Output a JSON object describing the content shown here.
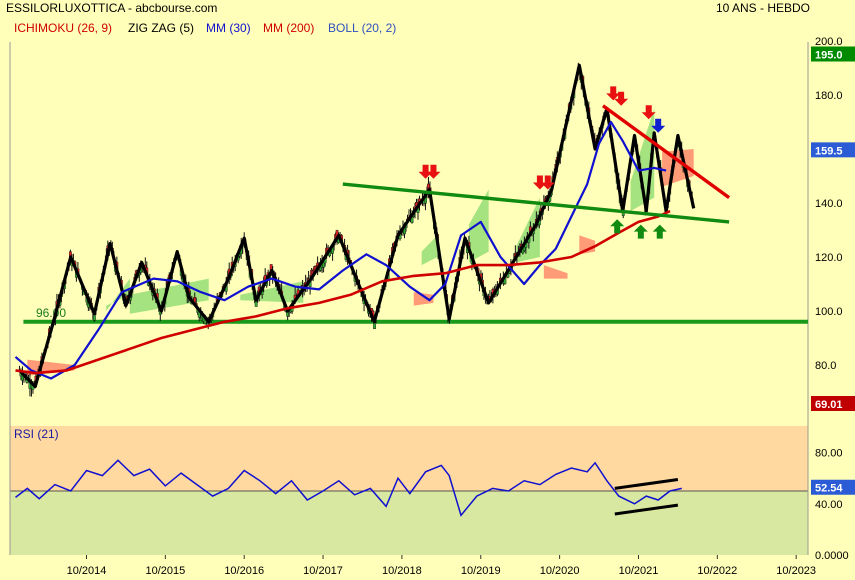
{
  "header": {
    "title": "ESSILORLUXOTTICA - abcbourse.com",
    "period": "10 ANS - HEBDO"
  },
  "legend": [
    {
      "label": "ICHIMOKU (26, 9)",
      "color": "#d00000"
    },
    {
      "label": "ZIG ZAG (5)",
      "color": "#000000"
    },
    {
      "label": "MM (30)",
      "color": "#1010d0"
    },
    {
      "label": "MM (200)",
      "color": "#d00000"
    },
    {
      "label": "BOLL (20, 2)",
      "color": "#3050c0"
    }
  ],
  "chart_data": [
    {
      "type": "line",
      "name": "price",
      "xlabel": "",
      "ylabel": "",
      "ylim": [
        55,
        201
      ],
      "ticks_y": [
        "200.0",
        "180.0",
        "160.0",
        "140.0",
        "120.0",
        "100.0",
        "80.0"
      ],
      "ticks_x": [
        "10/2014",
        "10/2015",
        "10/2016",
        "10/2017",
        "10/2018",
        "10/2019",
        "10/2020",
        "10/2021",
        "10/2022",
        "10/2023"
      ],
      "badges": [
        {
          "text": "195.0",
          "value": 195.0,
          "color": "#008a00"
        },
        {
          "text": "159.5",
          "value": 159.5,
          "color": "#2b5cd6"
        },
        {
          "text": "69.01",
          "value": 69.01,
          "color": "#c00000"
        }
      ],
      "support_label": "96.00",
      "support_level": 96.0,
      "series": [
        {
          "name": "ZIG ZAG (5)",
          "color": "#000000",
          "x": [
            2013.9,
            2014.1,
            2014.35,
            2014.55,
            2014.85,
            2015.05,
            2015.25,
            2015.45,
            2015.7,
            2015.9,
            2016.05,
            2016.3,
            2016.55,
            2016.75,
            2016.9,
            2017.1,
            2017.3,
            2017.6,
            2017.95,
            2018.2,
            2018.4,
            2018.7,
            2019.1,
            2019.35,
            2019.55,
            2019.85,
            2020.2,
            2020.45,
            2020.65,
            2021.0,
            2021.2,
            2021.35,
            2021.55,
            2021.7,
            2021.85,
            2021.95,
            2022.1,
            2022.25,
            2022.45
          ],
          "values": [
            78,
            72,
            98,
            120,
            99,
            125,
            102,
            118,
            100,
            122,
            105,
            96,
            112,
            127,
            104,
            115,
            100,
            112,
            128,
            110,
            96,
            128,
            145,
            97,
            127,
            103,
            120,
            132,
            145,
            191,
            160,
            175,
            137,
            165,
            137,
            166,
            137,
            165,
            138
          ]
        },
        {
          "name": "MM (30)",
          "color": "#1010d0",
          "x": [
            2013.85,
            2014.05,
            2014.3,
            2014.6,
            2014.9,
            2015.2,
            2015.6,
            2015.9,
            2016.2,
            2016.5,
            2016.8,
            2017.1,
            2017.4,
            2017.7,
            2018.0,
            2018.3,
            2018.55,
            2018.85,
            2019.1,
            2019.3,
            2019.5,
            2019.75,
            2020.0,
            2020.3,
            2020.5,
            2020.7,
            2020.9,
            2021.1,
            2021.25,
            2021.4,
            2021.55,
            2021.75,
            2021.95,
            2022.1
          ],
          "values": [
            83,
            78,
            75,
            80,
            93,
            107,
            112,
            111,
            107,
            104,
            109,
            112,
            109,
            108,
            115,
            121,
            117,
            109,
            104,
            110,
            128,
            133,
            120,
            110,
            117,
            123,
            135,
            147,
            162,
            170,
            163,
            152,
            153,
            152
          ]
        },
        {
          "name": "MM (200)",
          "color": "#d00000",
          "x": [
            2013.85,
            2014.1,
            2014.5,
            2014.9,
            2015.3,
            2015.7,
            2016.1,
            2016.5,
            2016.9,
            2017.3,
            2017.7,
            2018.1,
            2018.5,
            2018.9,
            2019.3,
            2019.7,
            2020.1,
            2020.5,
            2020.9,
            2021.2,
            2021.5,
            2021.75,
            2022.0,
            2022.15
          ],
          "values": [
            78,
            77,
            78,
            82,
            86,
            90,
            93,
            96,
            98,
            101,
            103,
            106,
            111,
            113,
            114,
            117,
            117,
            118,
            120,
            124,
            129,
            133,
            135,
            137
          ]
        },
        {
          "name": "Resistance",
          "color": "#e00000",
          "x": [
            2021.3,
            2022.9
          ],
          "values": [
            176,
            142
          ]
        },
        {
          "name": "Trendline",
          "color": "#108a10",
          "x": [
            2018.0,
            2022.9
          ],
          "values": [
            147,
            133
          ]
        }
      ]
    },
    {
      "type": "line",
      "name": "rsi",
      "title": "RSI (21)",
      "ylim": [
        0,
        100
      ],
      "ticks_y": [
        "80.00",
        "40.00",
        "0.0000"
      ],
      "badges": [
        {
          "text": "52.54",
          "value": 52.54,
          "color": "#2b5cd6"
        }
      ],
      "midline": 50,
      "series": [
        {
          "name": "RSI (21)",
          "color": "#1010d0",
          "x": [
            2013.85,
            2014.0,
            2014.15,
            2014.35,
            2014.55,
            2014.75,
            2014.95,
            2015.15,
            2015.35,
            2015.55,
            2015.75,
            2015.95,
            2016.15,
            2016.35,
            2016.55,
            2016.75,
            2016.95,
            2017.15,
            2017.35,
            2017.55,
            2017.75,
            2017.95,
            2018.15,
            2018.35,
            2018.55,
            2018.7,
            2018.85,
            2019.05,
            2019.25,
            2019.35,
            2019.5,
            2019.7,
            2019.9,
            2020.1,
            2020.3,
            2020.5,
            2020.7,
            2020.9,
            2021.1,
            2021.2,
            2021.35,
            2021.5,
            2021.7,
            2021.85,
            2022.0,
            2022.15,
            2022.3
          ],
          "values": [
            45,
            52,
            44,
            55,
            50,
            66,
            62,
            74,
            62,
            67,
            54,
            64,
            55,
            46,
            52,
            66,
            58,
            48,
            58,
            43,
            50,
            58,
            47,
            52,
            38,
            60,
            48,
            65,
            70,
            62,
            31,
            46,
            52,
            50,
            58,
            55,
            63,
            68,
            65,
            72,
            58,
            46,
            40,
            46,
            43,
            50,
            52
          ]
        },
        {
          "name": "Channel top",
          "color": "#000000",
          "x": [
            2021.45,
            2022.25
          ],
          "values": [
            52,
            59
          ]
        },
        {
          "name": "Channel bottom",
          "color": "#000000",
          "x": [
            2021.45,
            2022.25
          ],
          "values": [
            32,
            39
          ]
        }
      ]
    }
  ]
}
